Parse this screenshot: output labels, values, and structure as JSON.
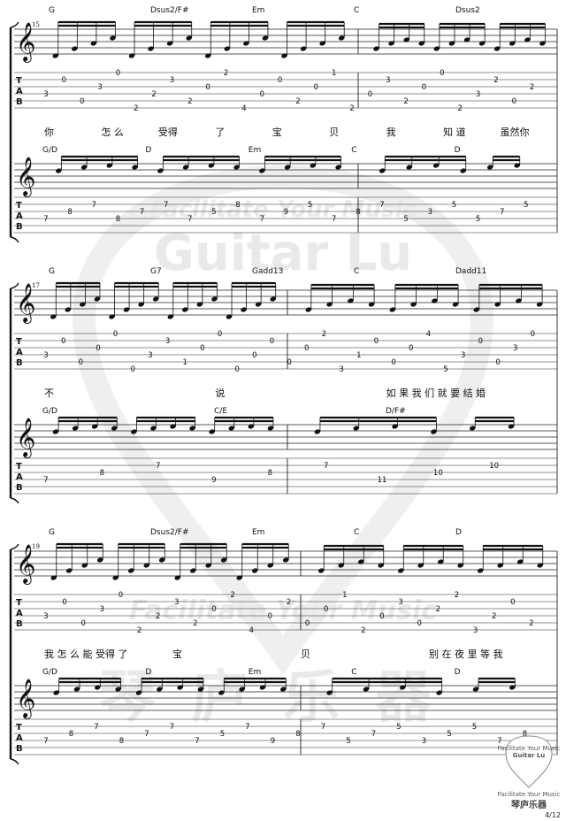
{
  "watermark": {
    "line1": "Facilitate Your Music",
    "line2": "Guitar Lu",
    "line3": "琴庐乐器"
  },
  "footer": {
    "badge_line1": "Facilitate Your Music",
    "badge_line2": "Guitar Lu",
    "brand_en": "Facilitate Your Music",
    "brand_cn": "琴庐乐器",
    "page_number": "4/12"
  },
  "tab_key": [
    "T",
    "A",
    "B"
  ],
  "systems": [
    {
      "measure_number": "15",
      "chords_upper": [
        {
          "text": "G"
        },
        {
          "text": "Dsus2/F#"
        },
        {
          "text": "Em"
        },
        {
          "text": "C"
        },
        {
          "text": "Dsus2"
        }
      ],
      "lyrics": [
        {
          "text": "你"
        },
        {
          "text": "怎 么"
        },
        {
          "text": "受得"
        },
        {
          "text": "了"
        },
        {
          "text": "宝"
        },
        {
          "text": "贝"
        },
        {
          "text": "我"
        },
        {
          "text": "知 道"
        },
        {
          "text": "虽然你"
        }
      ],
      "chords_lower": [
        {
          "text": "G/D"
        },
        {
          "text": "D"
        },
        {
          "text": "Em"
        },
        {
          "text": "C"
        },
        {
          "text": "D"
        }
      ],
      "tab_upper": [
        {
          "t": "3"
        },
        {
          "t": "0"
        },
        {
          "t": "0"
        },
        {
          "t": "3"
        },
        {
          "t": "0"
        },
        {
          "t": "2"
        },
        {
          "t": "2"
        },
        {
          "t": "3"
        },
        {
          "t": "2"
        },
        {
          "t": "0"
        },
        {
          "t": "2"
        },
        {
          "t": "4"
        },
        {
          "t": "0"
        },
        {
          "t": "0"
        },
        {
          "t": "2"
        },
        {
          "t": "0"
        },
        {
          "t": "1"
        },
        {
          "t": "2"
        },
        {
          "t": "0"
        },
        {
          "t": "3"
        },
        {
          "t": "2"
        },
        {
          "t": "0"
        },
        {
          "t": "0"
        },
        {
          "t": "2"
        },
        {
          "t": "3"
        },
        {
          "t": "2"
        },
        {
          "t": "0"
        },
        {
          "t": "2"
        }
      ],
      "tab_lower": [
        {
          "t": "7"
        },
        {
          "t": "8"
        },
        {
          "t": "7"
        },
        {
          "t": "8"
        },
        {
          "t": "7"
        },
        {
          "t": "7"
        },
        {
          "t": "7"
        },
        {
          "t": "5"
        },
        {
          "t": "8"
        },
        {
          "t": "7"
        },
        {
          "t": "9"
        },
        {
          "t": "5"
        },
        {
          "t": "7"
        },
        {
          "t": "8"
        },
        {
          "t": "7"
        },
        {
          "t": "5"
        },
        {
          "t": "3"
        },
        {
          "t": "5"
        },
        {
          "t": "5"
        },
        {
          "t": "7"
        },
        {
          "t": "5"
        }
      ]
    },
    {
      "measure_number": "17",
      "chords_upper": [
        {
          "text": "G"
        },
        {
          "text": "G7"
        },
        {
          "text": "Gadd13"
        },
        {
          "text": "C"
        },
        {
          "text": "Dadd11"
        }
      ],
      "lyrics": [
        {
          "text": "不"
        },
        {
          "text": "说"
        },
        {
          "text": "如 果 我 们 就 要 结 婚"
        }
      ],
      "chords_lower": [
        {
          "text": "G/D"
        },
        {
          "text": "C/E"
        },
        {
          "text": "D/F#"
        }
      ],
      "tab_upper": [
        {
          "t": "3"
        },
        {
          "t": "0"
        },
        {
          "t": "0"
        },
        {
          "t": "0"
        },
        {
          "t": "0"
        },
        {
          "t": "0"
        },
        {
          "t": "3"
        },
        {
          "t": "3"
        },
        {
          "t": "1"
        },
        {
          "t": "0"
        },
        {
          "t": "0"
        },
        {
          "t": "0"
        },
        {
          "t": "0"
        },
        {
          "t": "0"
        },
        {
          "t": "0"
        },
        {
          "t": "0"
        },
        {
          "t": "2"
        },
        {
          "t": "3"
        },
        {
          "t": "1"
        },
        {
          "t": "0"
        },
        {
          "t": "0"
        },
        {
          "t": "0"
        },
        {
          "t": "4"
        },
        {
          "t": "5"
        },
        {
          "t": "3"
        },
        {
          "t": "0"
        },
        {
          "t": "0"
        },
        {
          "t": "3"
        },
        {
          "t": "0"
        }
      ],
      "tab_lower": [
        {
          "t": "7"
        },
        {
          "t": "8"
        },
        {
          "t": "7"
        },
        {
          "t": "9"
        },
        {
          "t": "8"
        },
        {
          "t": "7"
        },
        {
          "t": "11"
        },
        {
          "t": "10"
        },
        {
          "t": "10"
        }
      ]
    },
    {
      "measure_number": "19",
      "chords_upper": [
        {
          "text": "G"
        },
        {
          "text": "Dsus2/F#"
        },
        {
          "text": "Em"
        },
        {
          "text": "C"
        },
        {
          "text": "D"
        }
      ],
      "lyrics": [
        {
          "text": "我 怎 么 能 受得 了"
        },
        {
          "text": "宝"
        },
        {
          "text": "贝"
        },
        {
          "text": "别 在 夜 里 等 我"
        }
      ],
      "chords_lower": [
        {
          "text": "G/D"
        },
        {
          "text": "D"
        },
        {
          "text": "Em"
        },
        {
          "text": "C"
        },
        {
          "text": "D"
        }
      ],
      "tab_upper": [
        {
          "t": "3"
        },
        {
          "t": "0"
        },
        {
          "t": "0"
        },
        {
          "t": "3"
        },
        {
          "t": "0"
        },
        {
          "t": "2"
        },
        {
          "t": "2"
        },
        {
          "t": "3"
        },
        {
          "t": "2"
        },
        {
          "t": "0"
        },
        {
          "t": "2"
        },
        {
          "t": "4"
        },
        {
          "t": "0"
        },
        {
          "t": "2"
        },
        {
          "t": "0"
        },
        {
          "t": "0"
        },
        {
          "t": "1"
        },
        {
          "t": "2"
        },
        {
          "t": "0"
        },
        {
          "t": "3"
        },
        {
          "t": "0"
        },
        {
          "t": "2"
        },
        {
          "t": "2"
        },
        {
          "t": "3"
        },
        {
          "t": "2"
        },
        {
          "t": "0"
        },
        {
          "t": "2"
        }
      ],
      "tab_lower": [
        {
          "t": "7"
        },
        {
          "t": "8"
        },
        {
          "t": "7"
        },
        {
          "t": "8"
        },
        {
          "t": "7"
        },
        {
          "t": "7"
        },
        {
          "t": "7"
        },
        {
          "t": "5"
        },
        {
          "t": "7"
        },
        {
          "t": "9"
        },
        {
          "t": "8"
        },
        {
          "t": "7"
        },
        {
          "t": "5"
        },
        {
          "t": "7"
        },
        {
          "t": "5"
        },
        {
          "t": "3"
        },
        {
          "t": "5"
        },
        {
          "t": "5"
        },
        {
          "t": "7"
        },
        {
          "t": "8"
        }
      ]
    }
  ]
}
